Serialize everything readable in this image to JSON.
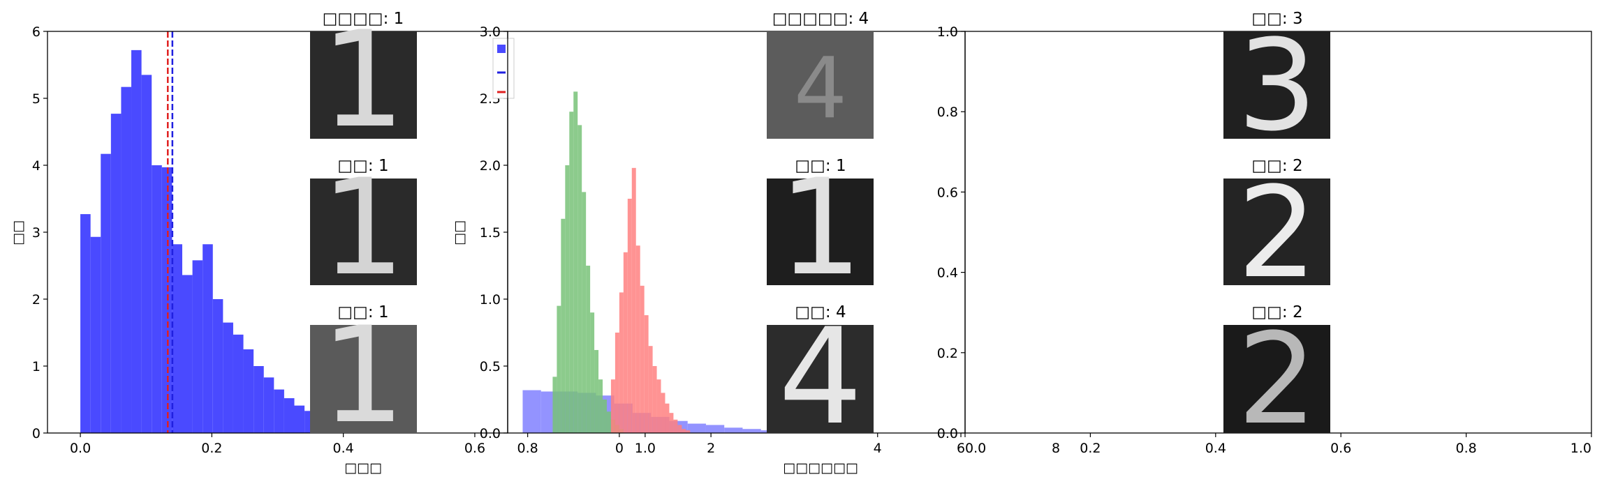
{
  "chart_data": [
    {
      "type": "bar",
      "subtype": "histogram",
      "title": "",
      "xlabel": "□□□",
      "ylabel": "□□",
      "xlim": [
        -0.05,
        0.65
      ],
      "ylim": [
        0,
        6
      ],
      "xticks": [
        "0.0",
        "0.2",
        "0.4",
        "0.6"
      ],
      "yticks": [
        "0",
        "1",
        "2",
        "3",
        "4",
        "5",
        "6"
      ],
      "bin_width": 0.0155,
      "bins_start": [
        0.0,
        0.0155,
        0.031,
        0.0465,
        0.062,
        0.0775,
        0.093,
        0.1085,
        0.124,
        0.1395,
        0.155,
        0.1705,
        0.186,
        0.2015,
        0.217,
        0.2325,
        0.248,
        0.2635,
        0.279,
        0.2945,
        0.31,
        0.3255,
        0.341,
        0.3565,
        0.372,
        0.3875,
        0.403
      ],
      "values": [
        3.27,
        2.93,
        4.17,
        4.77,
        5.17,
        5.72,
        5.35,
        4.0,
        3.97,
        2.82,
        2.36,
        2.58,
        2.82,
        2.0,
        1.65,
        1.47,
        1.25,
        1.0,
        0.83,
        0.65,
        0.52,
        0.41,
        0.33,
        0.23,
        0.17,
        0.1,
        0.05
      ],
      "bar_color": "#4a4aff",
      "reference_lines": [
        {
          "x": 0.133,
          "color": "#e02020",
          "style": "dashed"
        },
        {
          "x": 0.14,
          "color": "#2020e0",
          "style": "dashed"
        }
      ],
      "thumbnails": [
        {
          "title": "□□□□: 1",
          "digit": "1"
        },
        {
          "title": "□□: 1",
          "digit": "1"
        },
        {
          "title": "□□: 1",
          "digit": "1"
        }
      ]
    },
    {
      "type": "bar",
      "subtype": "overlaid-histogram",
      "title": "",
      "xlabel": "□□□□□□",
      "ylabel": "□□",
      "xlim": [
        0.56,
        6.05
      ],
      "ylim": [
        0,
        3.0
      ],
      "xticks": [
        "0.8",
        "0",
        "1.0",
        "2",
        "4",
        "6"
      ],
      "yticks": [
        "0.0",
        "0.5",
        "1.0",
        "1.5",
        "2.0",
        "2.5",
        "3.0"
      ],
      "series": [
        {
          "name": "",
          "color": "#8080ff",
          "bins_start": [
            0.74,
            0.96,
            1.18,
            1.4,
            1.62,
            1.84,
            2.06,
            2.28,
            2.5,
            2.72,
            2.94,
            3.16,
            3.38,
            3.6,
            3.82
          ],
          "bin_width": 0.22,
          "values": [
            0.32,
            0.31,
            0.31,
            0.3,
            0.28,
            0.22,
            0.15,
            0.12,
            0.09,
            0.07,
            0.06,
            0.04,
            0.03,
            0.02,
            0.01
          ]
        },
        {
          "name": "",
          "color": "#78c278",
          "bins_start": [
            1.1,
            1.15,
            1.2,
            1.25,
            1.3,
            1.35,
            1.4,
            1.45,
            1.5,
            1.55,
            1.6,
            1.65,
            1.7,
            1.75,
            1.8,
            1.85,
            1.9
          ],
          "bin_width": 0.05,
          "values": [
            0.42,
            0.95,
            1.6,
            2.0,
            2.4,
            2.55,
            2.3,
            1.8,
            1.25,
            0.9,
            0.62,
            0.4,
            0.25,
            0.16,
            0.1,
            0.06,
            0.03
          ]
        },
        {
          "name": "",
          "color": "#ff8080",
          "bins_start": [
            1.8,
            1.85,
            1.9,
            1.95,
            2.0,
            2.05,
            2.1,
            2.15,
            2.2,
            2.25,
            2.3,
            2.35,
            2.4,
            2.45,
            2.5,
            2.55,
            2.6,
            2.65,
            2.7
          ],
          "bin_width": 0.05,
          "values": [
            0.4,
            0.75,
            1.05,
            1.35,
            1.75,
            1.98,
            1.4,
            1.1,
            0.88,
            0.65,
            0.5,
            0.4,
            0.3,
            0.22,
            0.15,
            0.1,
            0.06,
            0.03,
            0.02
          ]
        }
      ],
      "thumbnails": [
        {
          "title": "□□□□□: 4",
          "digit": "4"
        },
        {
          "title": "□□: 1",
          "digit": "1"
        },
        {
          "title": "□□: 4",
          "digit": "4"
        }
      ]
    },
    {
      "type": "scatter",
      "title": "",
      "xlim": [
        0.0,
        1.0
      ],
      "ylim": [
        0.0,
        1.0
      ],
      "xticks": [
        "0.0",
        "0.2",
        "0.4",
        "0.6",
        "0.8",
        "1.0"
      ],
      "yticks": [
        "0.0",
        "0.2",
        "0.4",
        "0.6",
        "0.8",
        "1.0"
      ],
      "stray_tick": "8",
      "series": [],
      "thumbnails": [
        {
          "title": "□□: 3",
          "digit": "3"
        },
        {
          "title": "□□: 2",
          "digit": "2"
        },
        {
          "title": "□□: 2",
          "digit": "2"
        }
      ]
    }
  ]
}
